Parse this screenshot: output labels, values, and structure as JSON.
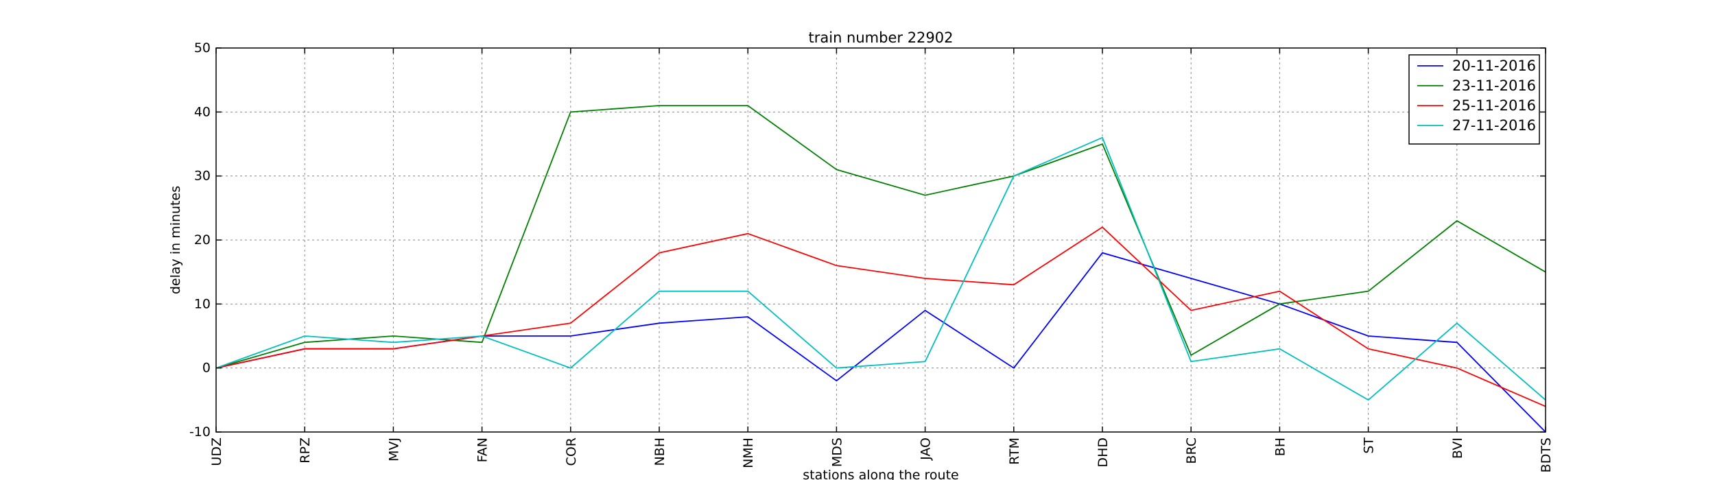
{
  "chart_data": {
    "type": "line",
    "title": "train number 22902",
    "xlabel": "stations along the route",
    "ylabel": "delay in minutes",
    "categories": [
      "UDZ",
      "RPZ",
      "MVJ",
      "FAN",
      "COR",
      "NBH",
      "NMH",
      "MDS",
      "JAO",
      "RTM",
      "DHD",
      "BRC",
      "BH",
      "ST",
      "BVI",
      "BDTS"
    ],
    "ylim": [
      -10,
      50
    ],
    "yticks": [
      -10,
      0,
      10,
      20,
      30,
      40,
      50
    ],
    "grid": true,
    "legend_position": "top-right",
    "series": [
      {
        "name": "20-11-2016",
        "color": "#0000ff",
        "values": [
          0,
          3,
          3,
          5,
          5,
          7,
          8,
          -2,
          9,
          0,
          18,
          14,
          10,
          5,
          4,
          -10
        ]
      },
      {
        "name": "23-11-2016",
        "color": "#008000",
        "values": [
          0,
          4,
          5,
          4,
          40,
          41,
          41,
          31,
          27,
          30,
          35,
          2,
          10,
          12,
          23,
          15
        ]
      },
      {
        "name": "25-11-2016",
        "color": "#ff0000",
        "values": [
          0,
          3,
          3,
          5,
          7,
          18,
          21,
          16,
          14,
          13,
          22,
          9,
          12,
          3,
          0,
          -6
        ]
      },
      {
        "name": "27-11-2016",
        "color": "#00bfbf",
        "values": [
          0,
          5,
          4,
          5,
          0,
          12,
          12,
          0,
          1,
          30,
          36,
          1,
          3,
          -5,
          7,
          -5
        ]
      }
    ]
  }
}
